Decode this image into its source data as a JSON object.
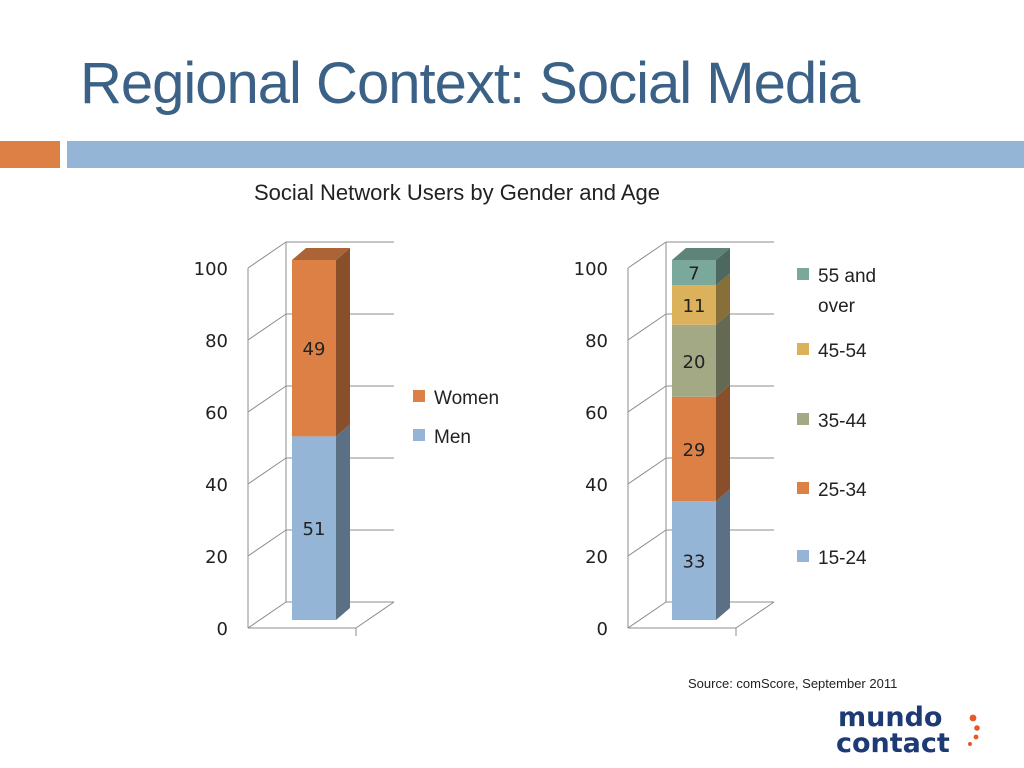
{
  "slide": {
    "title": "Regional Context: Social Media",
    "source": "Source: comScore, September 2011",
    "logo_text": [
      "mundo",
      "contact"
    ]
  },
  "colors": {
    "title": "#3b6186",
    "accent_orange": "#dd8046",
    "accent_blue": "#94b5d6",
    "logo_navy": "#1d3a74",
    "logo_orange": "#e8562a"
  },
  "chart_data": [
    {
      "type": "bar",
      "stacked": true,
      "title": "Social Network Users by Gender and Age",
      "categories": [
        ""
      ],
      "ylim": [
        0,
        100
      ],
      "yticks": [
        0,
        20,
        40,
        60,
        80,
        100
      ],
      "legend_position": "right",
      "series": [
        {
          "name": "Men",
          "values": [
            51
          ],
          "color": "#94b5d6"
        },
        {
          "name": "Women",
          "values": [
            49
          ],
          "color": "#dd8046"
        }
      ]
    },
    {
      "type": "bar",
      "stacked": true,
      "title": "",
      "categories": [
        ""
      ],
      "ylim": [
        0,
        100
      ],
      "yticks": [
        0,
        20,
        40,
        60,
        80,
        100
      ],
      "legend_position": "right",
      "series": [
        {
          "name": "15-24",
          "values": [
            33
          ],
          "color": "#94b5d6"
        },
        {
          "name": "25-34",
          "values": [
            29
          ],
          "color": "#dd8046"
        },
        {
          "name": "35-44",
          "values": [
            20
          ],
          "color": "#a2a984"
        },
        {
          "name": "45-54",
          "values": [
            11
          ],
          "color": "#dbb25b"
        },
        {
          "name": "55 and over",
          "values": [
            7
          ],
          "color": "#7aa89a"
        }
      ]
    }
  ]
}
